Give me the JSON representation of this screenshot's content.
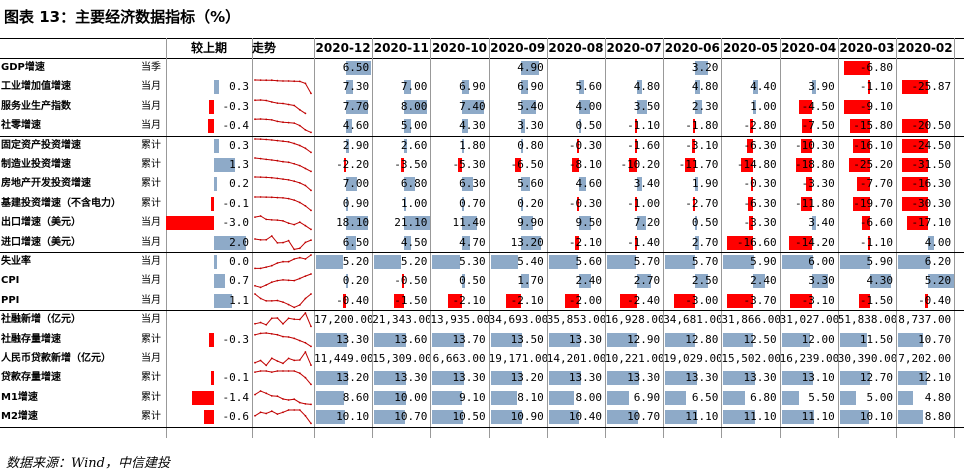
{
  "title": "图表 13：主要经济数据指标（%）",
  "source": "数据来源：Wind，中信建投",
  "header": {
    "change_label": "较上期",
    "trend_label": "走势",
    "periods": [
      "2020-12",
      "2020-11",
      "2020-10",
      "2020-09",
      "2020-08",
      "2020-07",
      "2020-06",
      "2020-05",
      "2020-04",
      "2020-03",
      "2020-02"
    ]
  },
  "rows": [
    {
      "label": "GDP增速",
      "freq": "当季",
      "change": "",
      "trend": [],
      "cells": [
        "6.50",
        "",
        "",
        "4.90",
        "",
        "",
        "3.20",
        "",
        "",
        "-6.80",
        ""
      ],
      "values": [
        6.5,
        null,
        null,
        4.9,
        null,
        null,
        3.2,
        null,
        null,
        -6.8,
        null
      ]
    },
    {
      "label": "工业增加值增速",
      "freq": "当月",
      "change": "0.3",
      "trend": [
        7.3,
        7.0,
        6.9,
        6.9,
        5.6,
        4.8,
        4.8,
        4.4,
        3.9,
        -1.1,
        -25.87
      ],
      "cells": [
        "7.30",
        "7.00",
        "6.90",
        "6.90",
        "5.60",
        "4.80",
        "4.80",
        "4.40",
        "3.90",
        "-1.10",
        "-25.87"
      ],
      "values": [
        7.3,
        7.0,
        6.9,
        6.9,
        5.6,
        4.8,
        4.8,
        4.4,
        3.9,
        -1.1,
        -25.87
      ]
    },
    {
      "label": "服务业生产指数",
      "freq": "当月",
      "change": "-0.3",
      "trend": [
        7.7,
        8.0,
        7.4,
        5.4,
        4.0,
        3.5,
        2.3,
        1.0,
        -4.5,
        -9.1,
        null
      ],
      "cells": [
        "7.70",
        "8.00",
        "7.40",
        "5.40",
        "4.00",
        "3.50",
        "2.30",
        "1.00",
        "-4.50",
        "-9.10",
        ""
      ],
      "values": [
        7.7,
        8.0,
        7.4,
        5.4,
        4.0,
        3.5,
        2.3,
        1.0,
        -4.5,
        -9.1,
        null
      ]
    },
    {
      "label": "社零增速",
      "freq": "当月",
      "change": "-0.4",
      "trend": [
        4.6,
        5.0,
        4.3,
        3.3,
        0.5,
        -1.1,
        -1.8,
        -2.8,
        -7.5,
        -15.8,
        -20.5
      ],
      "cells": [
        "4.60",
        "5.00",
        "4.30",
        "3.30",
        "0.50",
        "-1.10",
        "-1.80",
        "-2.80",
        "-7.50",
        "-15.80",
        "-20.50"
      ],
      "values": [
        4.6,
        5.0,
        4.3,
        3.3,
        0.5,
        -1.1,
        -1.8,
        -2.8,
        -7.5,
        -15.8,
        -20.5
      ]
    },
    {
      "label": "固定资产投资增速",
      "freq": "累计",
      "change": "0.3",
      "trend": [
        2.9,
        2.6,
        1.8,
        0.8,
        -0.3,
        -1.6,
        -3.1,
        -6.3,
        -10.3,
        -16.1,
        -24.5
      ],
      "cells": [
        "2.90",
        "2.60",
        "1.80",
        "0.80",
        "-0.30",
        "-1.60",
        "-3.10",
        "-6.30",
        "-10.30",
        "-16.10",
        "-24.50"
      ],
      "values": [
        2.9,
        2.6,
        1.8,
        0.8,
        -0.3,
        -1.6,
        -3.1,
        -6.3,
        -10.3,
        -16.1,
        -24.5
      ]
    },
    {
      "label": "制造业投资增速",
      "freq": "累计",
      "change": "1.3",
      "trend": [
        -2.2,
        -3.5,
        -5.3,
        -6.5,
        -8.1,
        -10.2,
        -11.7,
        -14.8,
        -18.8,
        -25.2,
        -31.5
      ],
      "cells": [
        "-2.20",
        "-3.50",
        "-5.30",
        "-6.50",
        "-8.10",
        "-10.20",
        "-11.70",
        "-14.80",
        "-18.80",
        "-25.20",
        "-31.50"
      ],
      "values": [
        -2.2,
        -3.5,
        -5.3,
        -6.5,
        -8.1,
        -10.2,
        -11.7,
        -14.8,
        -18.8,
        -25.2,
        -31.5
      ]
    },
    {
      "label": "房地产开发投资增速",
      "freq": "累计",
      "change": "0.2",
      "trend": [
        7.0,
        6.8,
        6.3,
        5.6,
        4.6,
        3.4,
        1.9,
        -0.3,
        -3.3,
        -7.7,
        -16.3
      ],
      "cells": [
        "7.00",
        "6.80",
        "6.30",
        "5.60",
        "4.60",
        "3.40",
        "1.90",
        "-0.30",
        "-3.30",
        "-7.70",
        "-16.30"
      ],
      "values": [
        7.0,
        6.8,
        6.3,
        5.6,
        4.6,
        3.4,
        1.9,
        -0.3,
        -3.3,
        -7.7,
        -16.3
      ]
    },
    {
      "label": "基建投资增速（不含电力）",
      "freq": "累计",
      "change": "-0.1",
      "trend": [
        0.9,
        1.0,
        0.7,
        0.2,
        -0.3,
        -1.0,
        -2.7,
        -6.3,
        -11.8,
        -19.7,
        -30.3
      ],
      "cells": [
        "0.90",
        "1.00",
        "0.70",
        "0.20",
        "-0.30",
        "-1.00",
        "-2.70",
        "-6.30",
        "-11.80",
        "-19.70",
        "-30.30"
      ],
      "values": [
        0.9,
        1.0,
        0.7,
        0.2,
        -0.3,
        -1.0,
        -2.7,
        -6.3,
        -11.8,
        -19.7,
        -30.3
      ]
    },
    {
      "label": "出口增速（美元）",
      "freq": "当月",
      "change": "-3.0",
      "trend": [
        18.1,
        21.1,
        11.4,
        9.9,
        9.5,
        7.2,
        0.5,
        -3.3,
        3.4,
        -6.6,
        -17.1
      ],
      "cells": [
        "18.10",
        "21.10",
        "11.40",
        "9.90",
        "9.50",
        "7.20",
        "0.50",
        "-3.30",
        "3.40",
        "-6.60",
        "-17.10"
      ],
      "values": [
        18.1,
        21.1,
        11.4,
        9.9,
        9.5,
        7.2,
        0.5,
        -3.3,
        3.4,
        -6.6,
        -17.1
      ]
    },
    {
      "label": "进口增速（美元）",
      "freq": "当月",
      "change": "2.0",
      "trend": [
        6.5,
        4.5,
        4.7,
        13.2,
        -2.1,
        -1.4,
        2.7,
        -16.6,
        -14.2,
        -1.1,
        4.0
      ],
      "cells": [
        "6.50",
        "4.50",
        "4.70",
        "13.20",
        "-2.10",
        "-1.40",
        "2.70",
        "-16.60",
        "-14.20",
        "-1.10",
        "4.00"
      ],
      "values": [
        6.5,
        4.5,
        4.7,
        13.2,
        -2.1,
        -1.4,
        2.7,
        -16.6,
        -14.2,
        -1.1,
        4.0
      ]
    },
    {
      "label": "失业率",
      "freq": "当月",
      "change": "0.0",
      "trend": [
        5.2,
        5.2,
        5.3,
        5.4,
        5.6,
        5.7,
        5.7,
        5.9,
        6.0,
        5.9,
        6.2
      ],
      "cells": [
        "5.20",
        "5.20",
        "5.30",
        "5.40",
        "5.60",
        "5.70",
        "5.70",
        "5.90",
        "6.00",
        "5.90",
        "6.20"
      ],
      "values": [
        5.2,
        5.2,
        5.3,
        5.4,
        5.6,
        5.7,
        5.7,
        5.9,
        6.0,
        5.9,
        6.2
      ]
    },
    {
      "label": "CPI",
      "freq": "当月",
      "change": "0.7",
      "trend": [
        0.2,
        -0.5,
        0.5,
        1.7,
        2.4,
        2.7,
        2.5,
        2.4,
        3.3,
        4.3,
        5.2
      ],
      "cells": [
        "0.20",
        "-0.50",
        "0.50",
        "1.70",
        "2.40",
        "2.70",
        "2.50",
        "2.40",
        "3.30",
        "4.30",
        "5.20"
      ],
      "values": [
        0.2,
        -0.5,
        0.5,
        1.7,
        2.4,
        2.7,
        2.5,
        2.4,
        3.3,
        4.3,
        5.2
      ]
    },
    {
      "label": "PPI",
      "freq": "当月",
      "change": "1.1",
      "trend": [
        -0.4,
        -1.5,
        -2.1,
        -2.1,
        -2.0,
        -2.4,
        -3.0,
        -3.7,
        -3.1,
        -1.5,
        -0.4
      ],
      "cells": [
        "-0.40",
        "-1.50",
        "-2.10",
        "-2.10",
        "-2.00",
        "-2.40",
        "-3.00",
        "-3.70",
        "-3.10",
        "-1.50",
        "-0.40"
      ],
      "values": [
        -0.4,
        -1.5,
        -2.1,
        -2.1,
        -2.0,
        -2.4,
        -3.0,
        -3.7,
        -3.1,
        -1.5,
        -0.4
      ]
    },
    {
      "label": "社融新增（亿元）",
      "freq": "当月",
      "change": "",
      "trend": [
        17200,
        21343,
        13935,
        34693,
        35853,
        16928,
        34681,
        31866,
        31027,
        51838,
        8737
      ],
      "cells": [
        "17,200.00",
        "21,343.00",
        "13,935.00",
        "34,693.00",
        "35,853.00",
        "16,928.00",
        "34,681.00",
        "31,866.00",
        "31,027.00",
        "51,838.00",
        "8,737.00"
      ],
      "values": []
    },
    {
      "label": "社融存量增速",
      "freq": "累计",
      "change": "-0.3",
      "trend": [
        13.3,
        13.6,
        13.7,
        13.5,
        13.3,
        12.9,
        12.8,
        12.5,
        12.0,
        11.5,
        10.7
      ],
      "cells": [
        "13.30",
        "13.60",
        "13.70",
        "13.50",
        "13.30",
        "12.90",
        "12.80",
        "12.50",
        "12.00",
        "11.50",
        "10.70"
      ],
      "values": [
        13.3,
        13.6,
        13.7,
        13.5,
        13.3,
        12.9,
        12.8,
        12.5,
        12.0,
        11.5,
        10.7
      ]
    },
    {
      "label": "人民币贷款新增（亿元）",
      "freq": "当月",
      "change": "",
      "trend": [
        11449,
        15309,
        6663,
        19171,
        14201,
        10221,
        19029,
        15502,
        16239,
        30390,
        7202
      ],
      "cells": [
        "11,449.00",
        "15,309.00",
        "6,663.00",
        "19,171.00",
        "14,201.00",
        "10,221.00",
        "19,029.00",
        "15,502.00",
        "16,239.00",
        "30,390.00",
        "7,202.00"
      ],
      "values": []
    },
    {
      "label": "贷款存量增速",
      "freq": "累计",
      "change": "-0.1",
      "trend": [
        13.2,
        13.3,
        13.3,
        13.2,
        13.3,
        13.3,
        13.3,
        13.3,
        13.1,
        12.7,
        12.1
      ],
      "cells": [
        "13.20",
        "13.30",
        "13.30",
        "13.20",
        "13.30",
        "13.30",
        "13.30",
        "13.30",
        "13.10",
        "12.70",
        "12.10"
      ],
      "values": [
        13.2,
        13.3,
        13.3,
        13.2,
        13.3,
        13.3,
        13.3,
        13.3,
        13.1,
        12.7,
        12.1
      ]
    },
    {
      "label": "M1增速",
      "freq": "累计",
      "change": "-1.4",
      "trend": [
        8.6,
        10.0,
        9.1,
        8.1,
        8.0,
        6.9,
        6.5,
        6.8,
        5.5,
        5.0,
        4.8
      ],
      "cells": [
        "8.60",
        "10.00",
        "9.10",
        "8.10",
        "8.00",
        "6.90",
        "6.50",
        "6.80",
        "5.50",
        "5.00",
        "4.80"
      ],
      "values": [
        8.6,
        10.0,
        9.1,
        8.1,
        8.0,
        6.9,
        6.5,
        6.8,
        5.5,
        5.0,
        4.8
      ]
    },
    {
      "label": "M2增速",
      "freq": "累计",
      "change": "-0.6",
      "trend": [
        10.1,
        10.7,
        10.5,
        10.9,
        10.4,
        10.7,
        11.1,
        11.1,
        11.1,
        10.1,
        8.8
      ],
      "cells": [
        "10.10",
        "10.70",
        "10.50",
        "10.90",
        "10.40",
        "10.70",
        "11.10",
        "11.10",
        "11.10",
        "10.10",
        "8.80"
      ],
      "values": [
        10.1,
        10.7,
        10.5,
        10.9,
        10.4,
        10.7,
        11.1,
        11.1,
        11.1,
        10.1,
        8.8
      ]
    }
  ],
  "colors": {
    "positive": "#8eaac8",
    "negative": "#ff0000",
    "trend": "#c00000"
  }
}
